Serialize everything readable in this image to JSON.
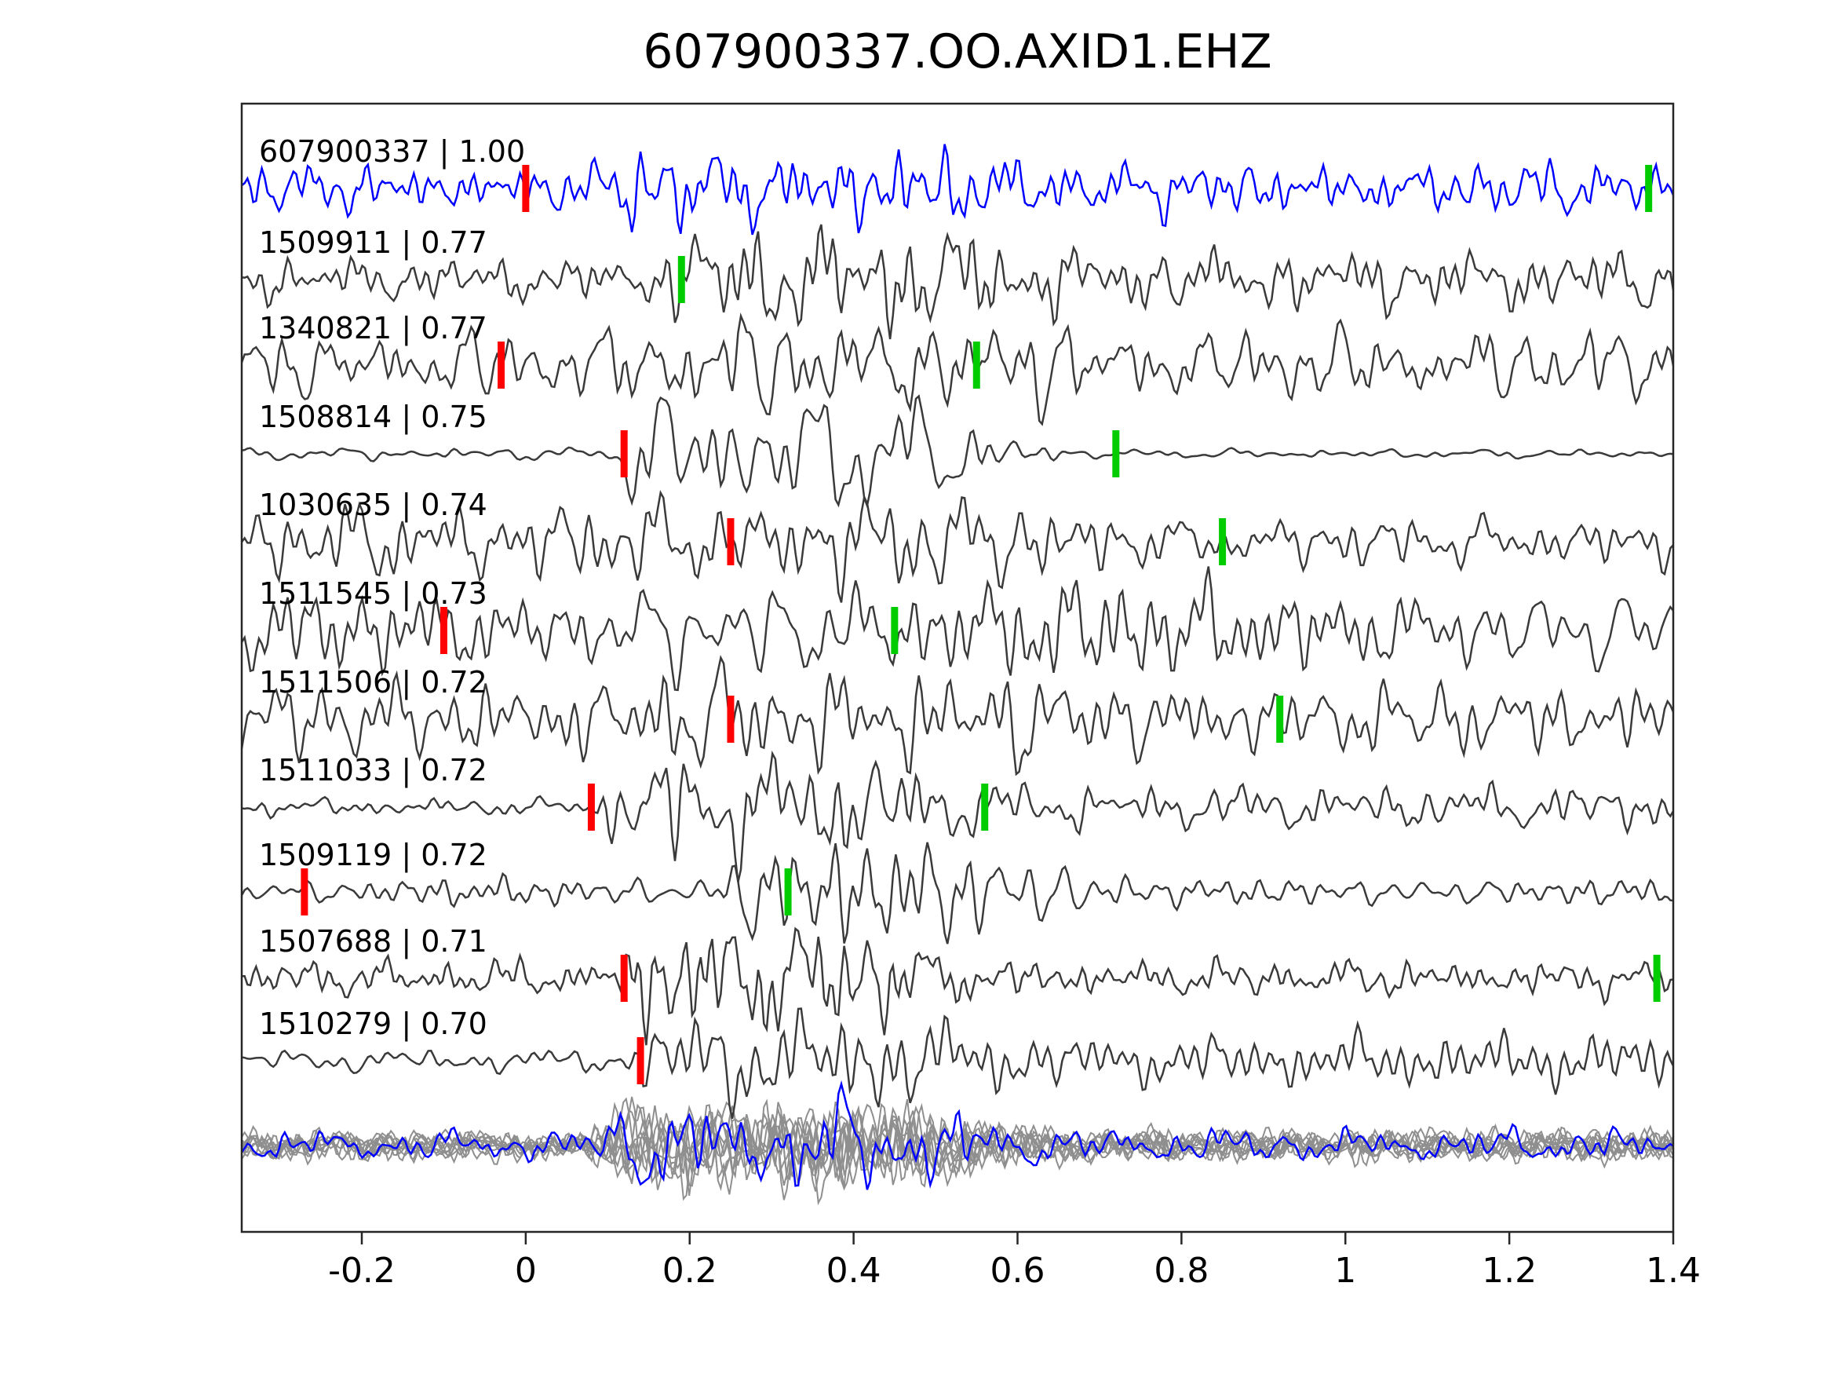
{
  "title": "607900337.OO.AXID1.EHZ",
  "colors": {
    "background": "#ffffff",
    "template": "#0000ff",
    "match": "#3a3a3a",
    "overlay": "#8f8f8f",
    "pick_red": "#ff0000",
    "pick_green": "#00cc00",
    "axis": "#262626",
    "text": "#000000"
  },
  "chart_data": {
    "type": "line",
    "title": "607900337.OO.AXID1.EHZ",
    "xlabel": "",
    "ylabel": "",
    "xlim": [
      -0.3465,
      1.4
    ],
    "x_ticks": [
      -0.2,
      0,
      0.2,
      0.4,
      0.6,
      0.8,
      1,
      1.2,
      1.4
    ],
    "x_tick_labels": [
      "-0.2",
      "0",
      "0.2",
      "0.4",
      "0.6",
      "0.8",
      "1",
      "1.2",
      "1.4"
    ],
    "grid": false,
    "legend": "none",
    "description": "Template seismogram (blue) with 10 matched event waveforms (dark gray), red and green phase-pick markers per trace, and a bottom panel overlaying all matches (gray) with the template (blue).",
    "traces": [
      {
        "id": "607900337",
        "similarity": 1.0,
        "label": "607900337 | 1.00",
        "role": "template",
        "color": "template",
        "picks": {
          "red": 0.0,
          "green": 1.37
        },
        "envelope": {
          "pre": 0.55,
          "burst": 0.95,
          "post": 0.6,
          "start": 0.1,
          "end": 0.45,
          "amp": 40
        }
      },
      {
        "id": "1509911",
        "similarity": 0.77,
        "label": "1509911 | 0.77",
        "role": "match",
        "color": "match",
        "picks": {
          "red": null,
          "green": 0.19
        },
        "envelope": {
          "pre": 0.4,
          "burst": 1.0,
          "post": 0.55,
          "start": 0.18,
          "end": 0.45,
          "amp": 52
        }
      },
      {
        "id": "1340821",
        "similarity": 0.77,
        "label": "1340821 | 0.77",
        "role": "match",
        "color": "match",
        "picks": {
          "red": -0.03,
          "green": 0.55
        },
        "envelope": {
          "pre": 0.65,
          "burst": 0.95,
          "post": 0.7,
          "start": 0.1,
          "end": 0.5,
          "amp": 48
        }
      },
      {
        "id": "1508814",
        "similarity": 0.75,
        "label": "1508814 | 0.75",
        "role": "match",
        "color": "match",
        "picks": {
          "red": 0.12,
          "green": 0.72
        },
        "envelope": {
          "pre": 0.1,
          "burst": 1.0,
          "post": 0.07,
          "start": 0.12,
          "end": 0.4,
          "amp": 58
        }
      },
      {
        "id": "1030635",
        "similarity": 0.74,
        "label": "1030635 | 0.74",
        "role": "match",
        "color": "match",
        "picks": {
          "red": 0.25,
          "green": 0.85
        },
        "envelope": {
          "pre": 0.8,
          "burst": 1.0,
          "post": 0.5,
          "start": 0.22,
          "end": 0.5,
          "amp": 46
        }
      },
      {
        "id": "1511545",
        "similarity": 0.73,
        "label": "1511545 | 0.73",
        "role": "match",
        "color": "match",
        "picks": {
          "red": -0.1,
          "green": 0.45
        },
        "envelope": {
          "pre": 0.75,
          "burst": 1.0,
          "post": 0.8,
          "start": 0.15,
          "end": 0.6,
          "amp": 48
        }
      },
      {
        "id": "1511506",
        "similarity": 0.72,
        "label": "1511506 | 0.72",
        "role": "match",
        "color": "match",
        "picks": {
          "red": 0.25,
          "green": 0.92
        },
        "envelope": {
          "pre": 0.75,
          "burst": 1.0,
          "post": 0.7,
          "start": 0.15,
          "end": 0.5,
          "amp": 48
        }
      },
      {
        "id": "1511033",
        "similarity": 0.72,
        "label": "1511033 | 0.72",
        "role": "match",
        "color": "match",
        "picks": {
          "red": 0.08,
          "green": 0.56
        },
        "envelope": {
          "pre": 0.15,
          "burst": 1.0,
          "post": 0.4,
          "start": 0.1,
          "end": 0.35,
          "amp": 52
        }
      },
      {
        "id": "1509119",
        "similarity": 0.72,
        "label": "1509119 | 0.72",
        "role": "match",
        "color": "match",
        "picks": {
          "red": -0.27,
          "green": 0.32
        },
        "envelope": {
          "pre": 0.3,
          "burst": 1.0,
          "post": 0.25,
          "start": 0.25,
          "end": 0.5,
          "amp": 42
        }
      },
      {
        "id": "1507688",
        "similarity": 0.71,
        "label": "1507688 | 0.71",
        "role": "match",
        "color": "match",
        "picks": {
          "red": 0.12,
          "green": 1.38
        },
        "envelope": {
          "pre": 0.3,
          "burst": 1.0,
          "post": 0.3,
          "start": 0.12,
          "end": 0.32,
          "amp": 56
        }
      },
      {
        "id": "1510279",
        "similarity": 0.7,
        "label": "1510279 | 0.70",
        "role": "match",
        "color": "match",
        "picks": {
          "red": 0.14,
          "green": null
        },
        "envelope": {
          "pre": 0.25,
          "burst": 1.0,
          "post": 0.45,
          "start": 0.14,
          "end": 0.38,
          "amp": 50
        }
      }
    ],
    "overlay_panel": {
      "count": 10,
      "color": "overlay",
      "highlight": "template",
      "envelope": {
        "pre": 0.5,
        "burst": 1.5,
        "post": 0.55,
        "start": 0.1,
        "end": 0.4,
        "amp": 26
      }
    }
  }
}
